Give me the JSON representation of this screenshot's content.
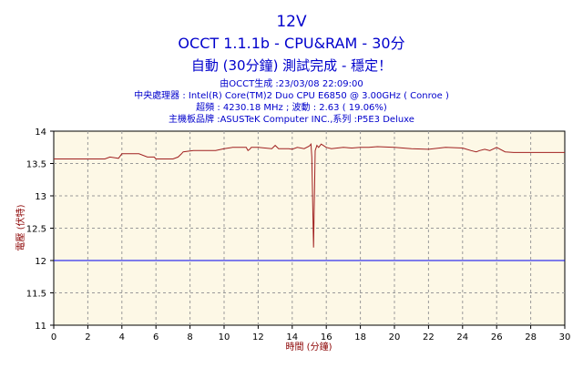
{
  "header": {
    "title_line1": "12V",
    "title_line2": "OCCT 1.1.1b - CPU&RAM - 30分",
    "title_line3": "自動 (30分鐘) 測試完成 - 穩定！",
    "info_generated": "由OCCT生成 :23/03/08 22:09:00",
    "info_cpu": "中央處理器 : Intel(R) Core(TM)2 Duo CPU E6850 @ 3.00GHz ( Conroe )",
    "info_freq": "超頻 : 4230.18 MHz ; 波動 : 2.63 ( 19.06%)",
    "info_board": "主機板品牌 :ASUSTeK Computer INC.,系列 :P5E3 Deluxe"
  },
  "colors": {
    "title_text": "#0000cc",
    "axis_label": "#8b0000",
    "plot_background": "#fdf8e6",
    "grid": "#9a9a9a",
    "series_voltage": "#a02020",
    "reference_line": "#0000ee"
  },
  "chart_data": {
    "type": "line",
    "xlabel": "時間 (分鐘)",
    "ylabel": "電壓 (伏特)",
    "xlim": [
      0,
      30
    ],
    "ylim": [
      11,
      14
    ],
    "x_ticks": [
      "0",
      "2",
      "4",
      "6",
      "8",
      "10",
      "12",
      "14",
      "16",
      "18",
      "20",
      "22",
      "24",
      "26",
      "28",
      "30"
    ],
    "y_ticks": [
      "14",
      "13.5",
      "13",
      "12.5",
      "12",
      "11.5",
      "11"
    ],
    "grid": true,
    "reference_line": {
      "y": 12
    },
    "series": [
      {
        "x": [
          0,
          3.0,
          3.3,
          3.8,
          4.0,
          5.0,
          5.5,
          5.9,
          6.0,
          7.0,
          7.3,
          7.5,
          7.6,
          8.2,
          9.5,
          10.0,
          10.5,
          11.3,
          11.4,
          11.5,
          11.6,
          12.0,
          12.8,
          13.0,
          13.2,
          13.8,
          14.0,
          14.3,
          14.7,
          15.0,
          15.1,
          15.15,
          15.25,
          15.35,
          15.45,
          15.55,
          15.7,
          16.0,
          16.3,
          17.0,
          17.5,
          18.0,
          18.5,
          19.0,
          20.0,
          21.0,
          22.0,
          23.0,
          24.0,
          24.5,
          24.8,
          25.0,
          25.3,
          25.6,
          26.0,
          26.5,
          27.0,
          28.0,
          29.0,
          30.0
        ],
        "y": [
          13.57,
          13.57,
          13.6,
          13.58,
          13.65,
          13.65,
          13.6,
          13.6,
          13.57,
          13.57,
          13.6,
          13.65,
          13.68,
          13.7,
          13.7,
          13.73,
          13.75,
          13.75,
          13.7,
          13.72,
          13.75,
          13.75,
          13.73,
          13.78,
          13.73,
          13.73,
          13.72,
          13.75,
          13.73,
          13.77,
          13.8,
          13.6,
          12.2,
          13.7,
          13.78,
          13.75,
          13.8,
          13.75,
          13.73,
          13.75,
          13.74,
          13.75,
          13.75,
          13.76,
          13.75,
          13.73,
          13.72,
          13.75,
          13.74,
          13.7,
          13.68,
          13.7,
          13.72,
          13.7,
          13.75,
          13.68,
          13.67,
          13.67,
          13.67,
          13.67
        ]
      }
    ]
  }
}
